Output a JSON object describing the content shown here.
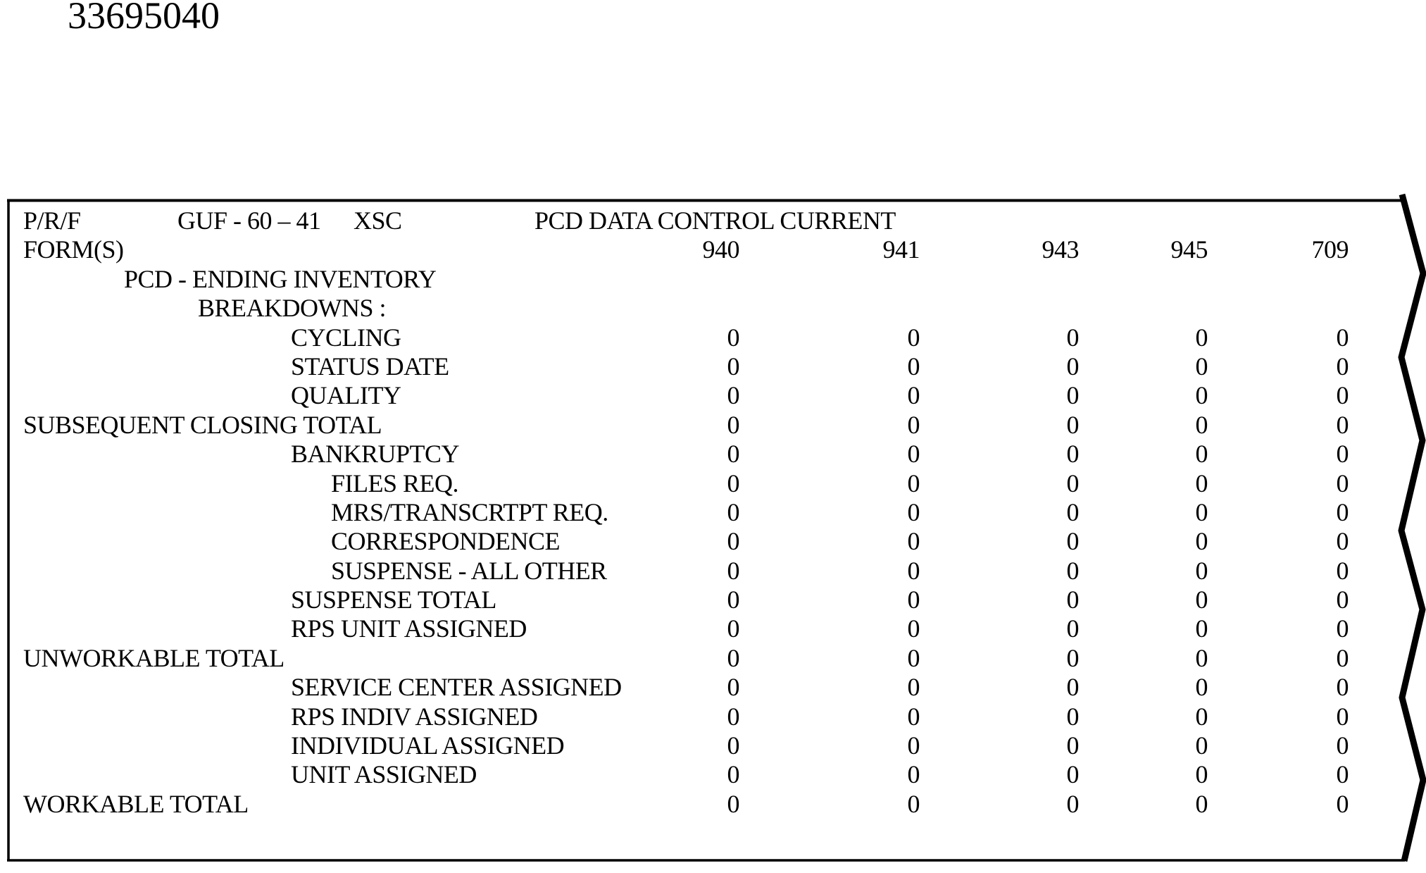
{
  "page": {
    "document_number": "33695040"
  },
  "report": {
    "header": {
      "prf": "P/R/F",
      "guf": "GUF - 60 – 41",
      "xsc": "XSC",
      "title": "PCD DATA CONTROL CURRENT"
    },
    "rows": [
      {
        "label": "FORM(S)",
        "indent": 0,
        "values": [
          "940",
          "941",
          "943",
          "945",
          "709"
        ]
      },
      {
        "label": "PCD - ENDING INVENTORY",
        "indent": 1,
        "values": []
      },
      {
        "label": "BREAKDOWNS :",
        "indent": 2,
        "values": []
      },
      {
        "label": "CYCLING",
        "indent": 3,
        "values": [
          "0",
          "0",
          "0",
          "0",
          "0"
        ]
      },
      {
        "label": "STATUS DATE",
        "indent": 3,
        "values": [
          "0",
          "0",
          "0",
          "0",
          "0"
        ]
      },
      {
        "label": "QUALITY",
        "indent": 3,
        "values": [
          "0",
          "0",
          "0",
          "0",
          "0"
        ]
      },
      {
        "label": "SUBSEQUENT CLOSING TOTAL",
        "indent": 0,
        "values": [
          "0",
          "0",
          "0",
          "0",
          "0"
        ]
      },
      {
        "label": "BANKRUPTCY",
        "indent": 3,
        "values": [
          "0",
          "0",
          "0",
          "0",
          "0"
        ]
      },
      {
        "label": "FILES REQ.",
        "indent": 4,
        "values": [
          "0",
          "0",
          "0",
          "0",
          "0"
        ]
      },
      {
        "label": "MRS/TRANSCRTPT REQ.",
        "indent": 4,
        "values": [
          "0",
          "0",
          "0",
          "0",
          "0"
        ]
      },
      {
        "label": "CORRESPONDENCE",
        "indent": 4,
        "values": [
          "0",
          "0",
          "0",
          "0",
          "0"
        ]
      },
      {
        "label": "SUSPENSE - ALL OTHER",
        "indent": 4,
        "values": [
          "0",
          "0",
          "0",
          "0",
          "0"
        ]
      },
      {
        "label": "SUSPENSE TOTAL",
        "indent": 3,
        "values": [
          "0",
          "0",
          "0",
          "0",
          "0"
        ]
      },
      {
        "label": "RPS UNIT ASSIGNED",
        "indent": 3,
        "values": [
          "0",
          "0",
          "0",
          "0",
          "0"
        ]
      },
      {
        "label": "UNWORKABLE TOTAL",
        "indent": 0,
        "values": [
          "0",
          "0",
          "0",
          "0",
          "0"
        ]
      },
      {
        "label": "SERVICE CENTER ASSIGNED",
        "indent": 3,
        "values": [
          "0",
          "0",
          "0",
          "0",
          "0"
        ]
      },
      {
        "label": "RPS INDIV ASSIGNED",
        "indent": 3,
        "values": [
          "0",
          "0",
          "0",
          "0",
          "0"
        ]
      },
      {
        "label": "INDIVIDUAL ASSIGNED",
        "indent": 3,
        "values": [
          "0",
          "0",
          "0",
          "0",
          "0"
        ]
      },
      {
        "label": "UNIT ASSIGNED",
        "indent": 3,
        "values": [
          "0",
          "0",
          "0",
          "0",
          "0"
        ]
      },
      {
        "label": "WORKABLE TOTAL",
        "indent": 0,
        "values": [
          "0",
          "0",
          "0",
          "0",
          "0"
        ]
      }
    ],
    "border_color": "#000000"
  }
}
